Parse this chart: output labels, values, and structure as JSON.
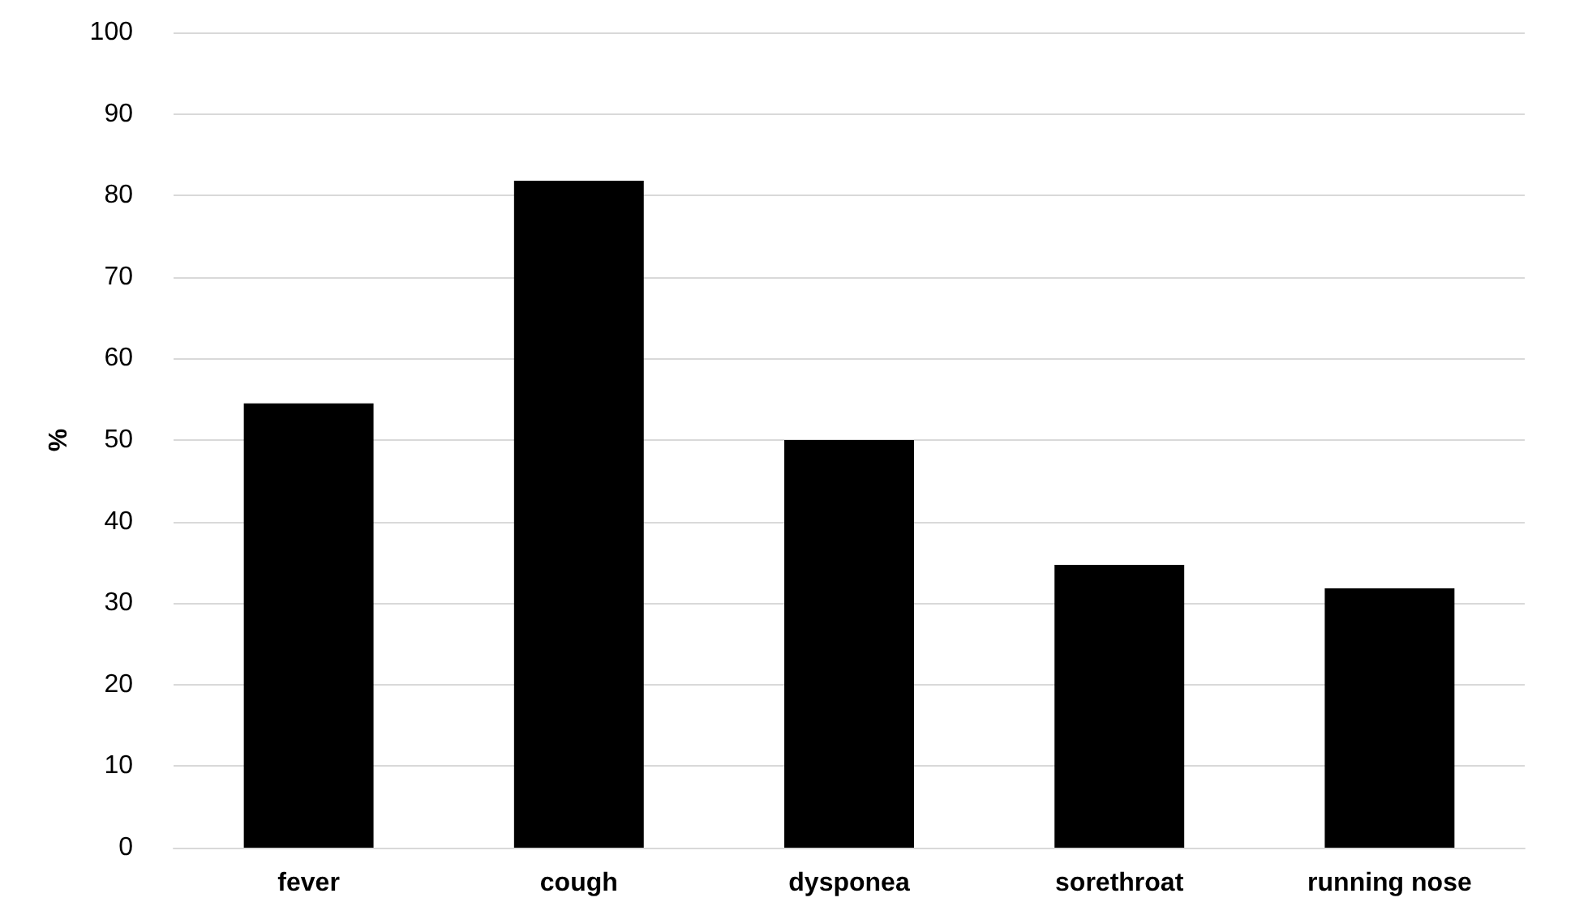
{
  "chart_data": {
    "type": "bar",
    "categories": [
      "fever",
      "cough",
      "dysponea",
      "sorethroat",
      "running nose"
    ],
    "values": [
      54.5,
      81.8,
      50,
      34.7,
      31.8
    ],
    "color": "#000000",
    "ylabel": "%",
    "ylim": [
      0,
      100
    ],
    "yticks": [
      0,
      10,
      20,
      30,
      40,
      50,
      60,
      70,
      80,
      90,
      100
    ],
    "grid": "y"
  }
}
